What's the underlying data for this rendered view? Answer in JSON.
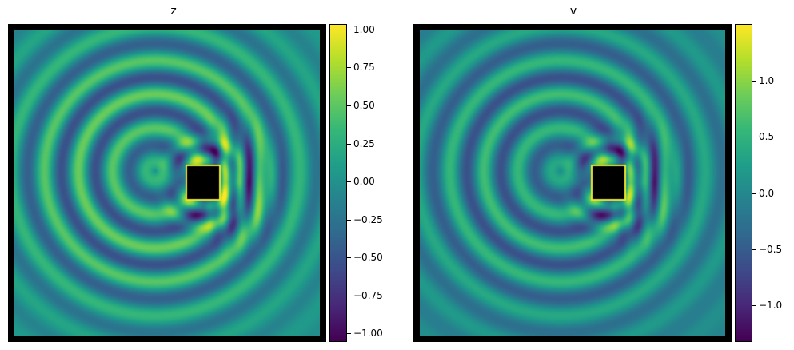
{
  "chart_data": [
    {
      "type": "heatmap",
      "title": "z",
      "colormap": "viridis",
      "colorbar": {
        "range": [
          -1.05,
          1.03
        ],
        "ticks": [
          1.0,
          0.75,
          0.5,
          0.25,
          0.0,
          -0.25,
          -0.5,
          -0.75,
          -1.0
        ],
        "tick_labels": [
          "1.00",
          "0.75",
          "0.50",
          "0.25",
          "0.00",
          "−0.25",
          "−0.50",
          "−0.75",
          "−1.00"
        ]
      },
      "axes_visible": false
    },
    {
      "type": "heatmap",
      "title": "v",
      "colormap": "viridis",
      "colorbar": {
        "range": [
          -1.32,
          1.5
        ],
        "ticks": [
          1.0,
          0.5,
          0.0,
          -0.5,
          -1.0
        ],
        "tick_labels": [
          "1.0",
          "0.5",
          "0.0",
          "−0.5",
          "−1.0"
        ]
      },
      "axes_visible": false
    }
  ]
}
